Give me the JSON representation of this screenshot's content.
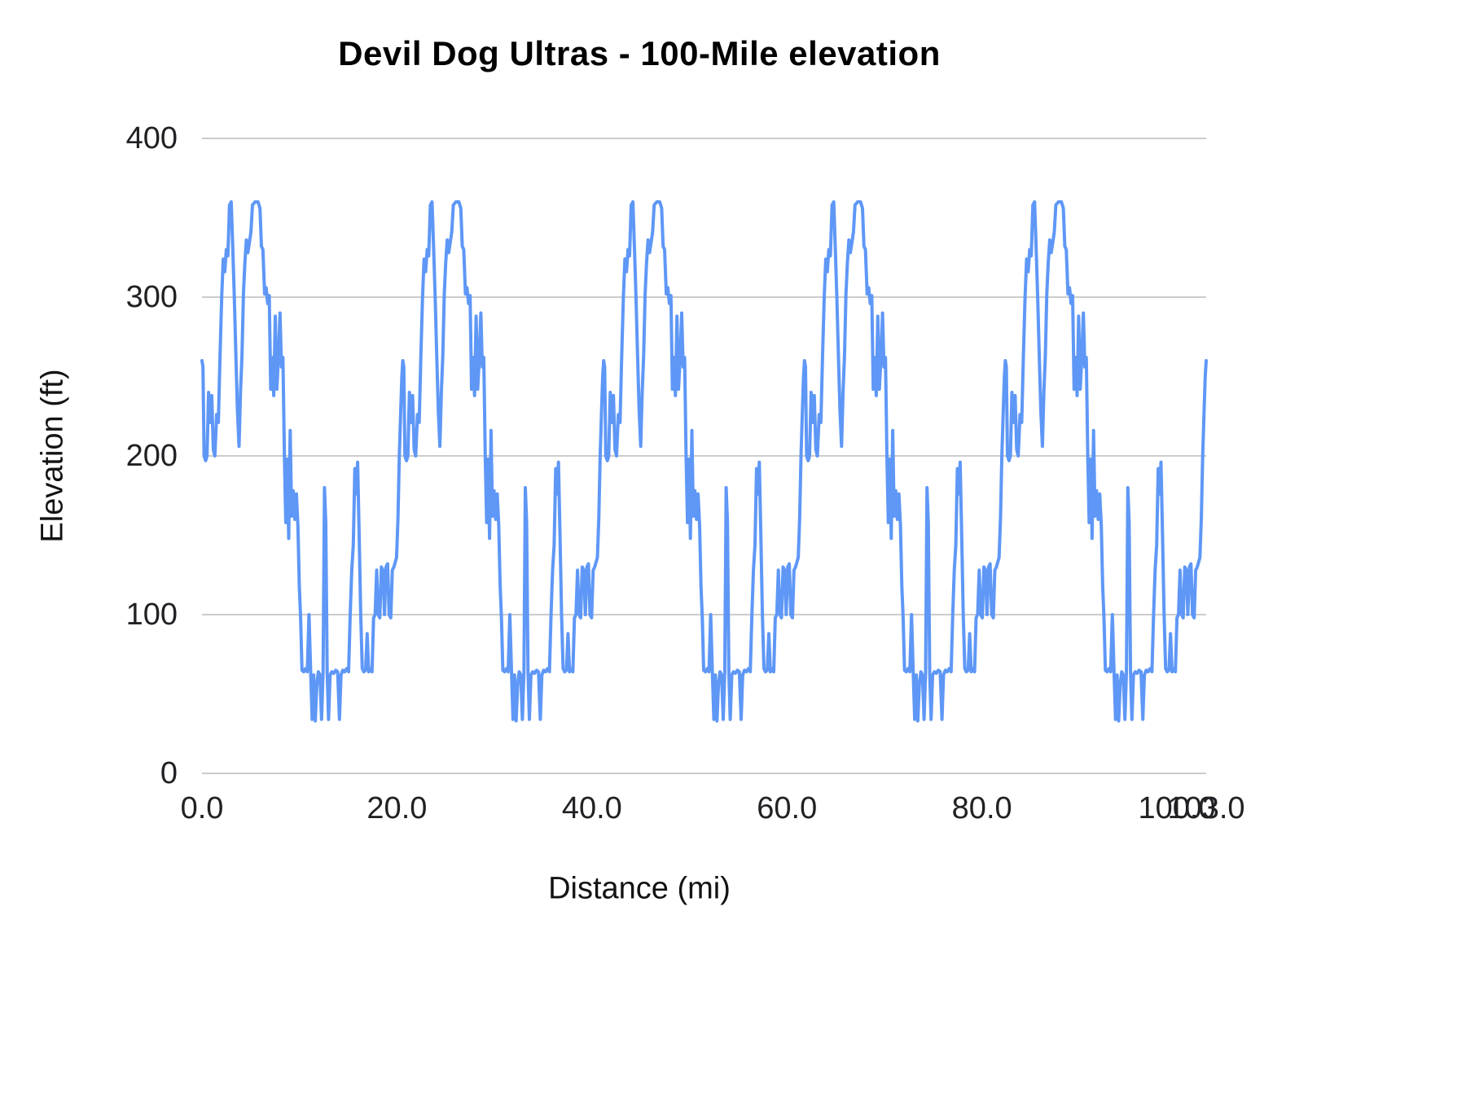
{
  "chart_data": {
    "type": "line",
    "title": "Devil Dog Ultras - 100-Mile elevation",
    "xlabel": "Distance (mi)",
    "ylabel": "Elevation (ft)",
    "xlim": [
      0,
      103
    ],
    "ylim": [
      0,
      400
    ],
    "grid": true,
    "legend_position": "none",
    "x_ticks": [
      0,
      20,
      40,
      60,
      80,
      100,
      103
    ],
    "x_tick_labels": [
      "0.0",
      "20.0",
      "40.0",
      "60.0",
      "80.0",
      "100.0",
      "103.0"
    ],
    "y_ticks": [
      0,
      100,
      200,
      300,
      400
    ],
    "y_tick_labels": [
      "0",
      "100",
      "200",
      "300",
      "400"
    ],
    "line_color": "#5e97f6",
    "grid_color": "#cccccc",
    "laps": 5,
    "lap_distance_mi": 20.6,
    "lap_profile": [
      [
        0.0,
        260
      ],
      [
        0.1,
        256
      ],
      [
        0.22,
        200
      ],
      [
        0.38,
        197
      ],
      [
        0.52,
        200
      ],
      [
        0.68,
        240
      ],
      [
        0.84,
        221
      ],
      [
        1.0,
        238
      ],
      [
        1.16,
        204
      ],
      [
        1.32,
        200
      ],
      [
        1.5,
        226
      ],
      [
        1.68,
        221
      ],
      [
        1.85,
        262
      ],
      [
        2.02,
        300
      ],
      [
        2.18,
        324
      ],
      [
        2.34,
        316
      ],
      [
        2.5,
        330
      ],
      [
        2.66,
        326
      ],
      [
        2.82,
        358
      ],
      [
        3.0,
        360
      ],
      [
        3.16,
        331
      ],
      [
        3.32,
        300
      ],
      [
        3.48,
        262
      ],
      [
        3.64,
        228
      ],
      [
        3.8,
        206
      ],
      [
        3.95,
        240
      ],
      [
        4.1,
        263
      ],
      [
        4.25,
        302
      ],
      [
        4.4,
        322
      ],
      [
        4.55,
        336
      ],
      [
        4.7,
        328
      ],
      [
        4.85,
        334
      ],
      [
        5.02,
        341
      ],
      [
        5.18,
        358
      ],
      [
        5.45,
        360
      ],
      [
        5.75,
        360
      ],
      [
        5.95,
        356
      ],
      [
        6.1,
        332
      ],
      [
        6.25,
        330
      ],
      [
        6.42,
        302
      ],
      [
        6.58,
        306
      ],
      [
        6.74,
        296
      ],
      [
        6.9,
        301
      ],
      [
        7.05,
        242
      ],
      [
        7.2,
        262
      ],
      [
        7.36,
        238
      ],
      [
        7.52,
        288
      ],
      [
        7.68,
        242
      ],
      [
        7.84,
        262
      ],
      [
        8.0,
        290
      ],
      [
        8.15,
        256
      ],
      [
        8.3,
        262
      ],
      [
        8.45,
        200
      ],
      [
        8.6,
        158
      ],
      [
        8.75,
        198
      ],
      [
        8.9,
        148
      ],
      [
        9.05,
        216
      ],
      [
        9.2,
        162
      ],
      [
        9.36,
        178
      ],
      [
        9.52,
        160
      ],
      [
        9.68,
        176
      ],
      [
        9.84,
        156
      ],
      [
        9.98,
        118
      ],
      [
        10.12,
        98
      ],
      [
        10.26,
        65
      ],
      [
        10.44,
        64
      ],
      [
        10.62,
        66
      ],
      [
        10.8,
        64
      ],
      [
        10.98,
        100
      ],
      [
        11.14,
        65
      ],
      [
        11.3,
        34
      ],
      [
        11.46,
        62
      ],
      [
        11.62,
        33
      ],
      [
        11.78,
        56
      ],
      [
        11.94,
        64
      ],
      [
        12.1,
        62
      ],
      [
        12.26,
        34
      ],
      [
        12.42,
        64
      ],
      [
        12.56,
        180
      ],
      [
        12.7,
        158
      ],
      [
        12.84,
        64
      ],
      [
        12.98,
        34
      ],
      [
        13.14,
        62
      ],
      [
        13.32,
        64
      ],
      [
        13.52,
        63
      ],
      [
        13.72,
        65
      ],
      [
        13.92,
        64
      ],
      [
        14.1,
        34
      ],
      [
        14.26,
        62
      ],
      [
        14.44,
        65
      ],
      [
        14.64,
        64
      ],
      [
        14.84,
        66
      ],
      [
        15.04,
        64
      ],
      [
        15.2,
        100
      ],
      [
        15.36,
        128
      ],
      [
        15.52,
        144
      ],
      [
        15.68,
        192
      ],
      [
        15.82,
        176
      ],
      [
        15.96,
        196
      ],
      [
        16.12,
        150
      ],
      [
        16.28,
        100
      ],
      [
        16.44,
        66
      ],
      [
        16.6,
        64
      ],
      [
        16.78,
        65
      ],
      [
        16.94,
        88
      ],
      [
        17.1,
        64
      ],
      [
        17.26,
        66
      ],
      [
        17.44,
        64
      ],
      [
        17.6,
        98
      ],
      [
        17.76,
        100
      ],
      [
        17.92,
        128
      ],
      [
        18.08,
        100
      ],
      [
        18.24,
        98
      ],
      [
        18.4,
        130
      ],
      [
        18.56,
        128
      ],
      [
        18.72,
        100
      ],
      [
        18.88,
        130
      ],
      [
        19.04,
        132
      ],
      [
        19.2,
        100
      ],
      [
        19.36,
        98
      ],
      [
        19.52,
        128
      ],
      [
        19.68,
        130
      ],
      [
        19.82,
        133
      ],
      [
        19.96,
        136
      ],
      [
        20.1,
        160
      ],
      [
        20.24,
        200
      ],
      [
        20.38,
        228
      ],
      [
        20.5,
        250
      ],
      [
        20.6,
        260
      ]
    ]
  }
}
